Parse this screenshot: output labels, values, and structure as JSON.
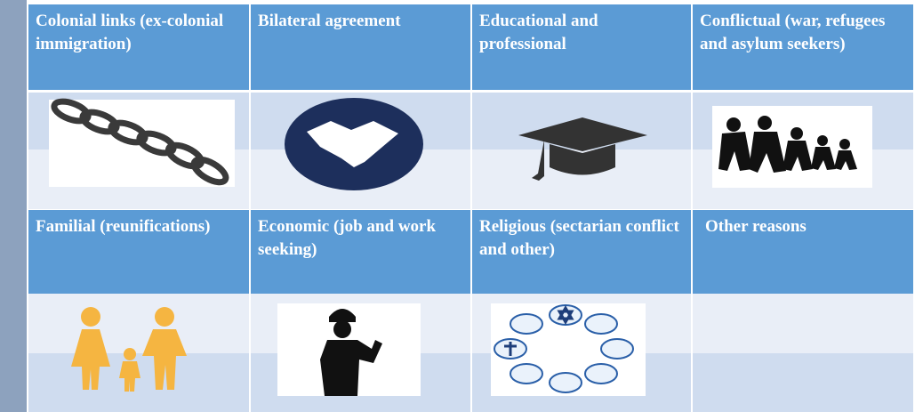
{
  "table": {
    "rows": [
      [
        "Colonial links (ex-colonial immigration)",
        "Bilateral agreement",
        "Educational and professional",
        "Conflictual (war, refugees and asylum seekers)"
      ],
      [
        "Familial (reunifications)",
        "Economic (job and work seeking)",
        "Religious (sectarian conflict and other)",
        "Other reasons"
      ]
    ]
  }
}
